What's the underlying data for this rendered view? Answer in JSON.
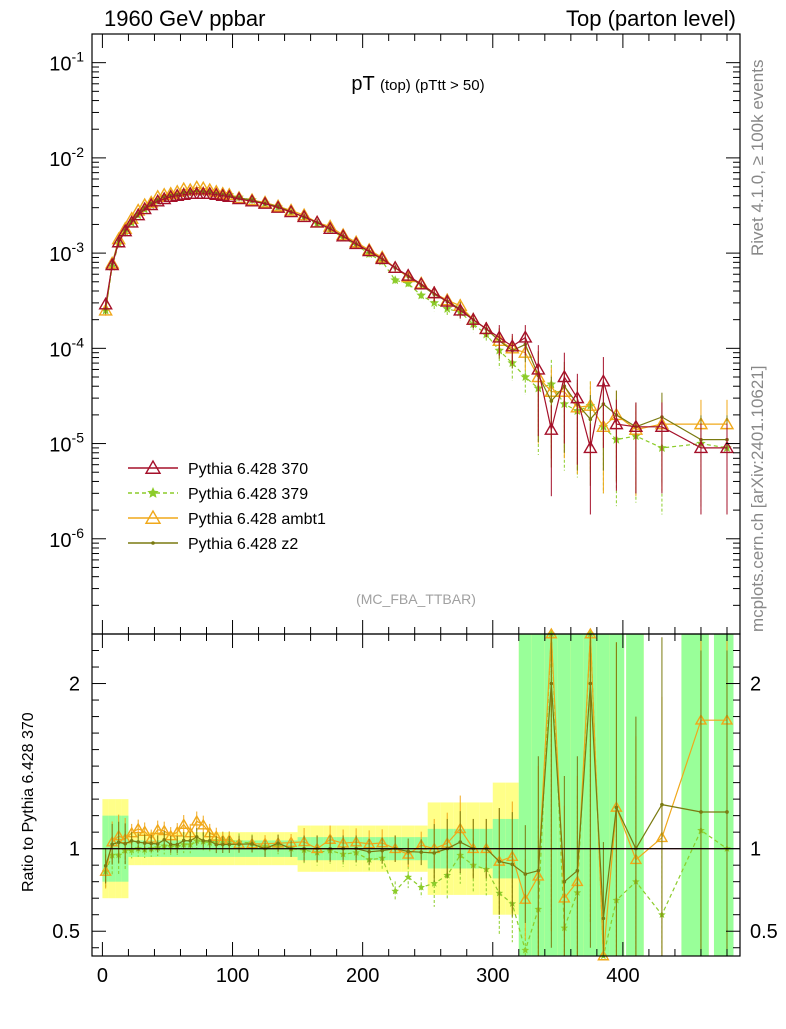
{
  "header": {
    "left": "1960 GeV ppbar",
    "right": "Top (parton level)"
  },
  "side": {
    "rivet": "Rivet 4.1.0, ≥ 100k events",
    "mcplots": "mcplots.cern.ch [arXiv:2401.10621]"
  },
  "colors": {
    "p370": "#a5102a",
    "p379": "#8ccc2a",
    "ambt1": "#f0a81a",
    "z2": "#7a7a10",
    "band_inner": "#99ff99",
    "band_outer": "#ffff88"
  },
  "chart_data": {
    "type": "line",
    "title": "pT (top) (pTtt > 50)",
    "analysis_tag": "(MC_FBA_TTBAR)",
    "xlabel": "",
    "x_ticks": [
      0,
      100,
      200,
      300,
      400
    ],
    "main": {
      "yscale": "log",
      "ylim": [
        1e-07,
        0.2
      ],
      "y_ticks": [
        {
          "value": 1e-06,
          "exp": "-6"
        },
        {
          "value": 1e-05,
          "exp": "-5"
        },
        {
          "value": 0.0001,
          "exp": "-4"
        },
        {
          "value": 0.001,
          "exp": "-3"
        },
        {
          "value": 0.01,
          "exp": "-2"
        },
        {
          "value": 0.1,
          "exp": "-1"
        }
      ]
    },
    "ratio": {
      "ylabel": "Ratio to Pythia 6.428 370",
      "ylim": [
        0.35,
        2.3
      ],
      "y_ticks": [
        "0.5",
        "1",
        "2"
      ],
      "y_tick_values": [
        0.5,
        1,
        2
      ]
    },
    "xlim": [
      -8,
      490
    ],
    "x": [
      2.5,
      7.5,
      12.5,
      17.5,
      22.5,
      27.5,
      32.5,
      37.5,
      42.5,
      47.5,
      52.5,
      57.5,
      62.5,
      67.5,
      72.5,
      77.5,
      82.5,
      87.5,
      92.5,
      97.5,
      105,
      115,
      125,
      135,
      145,
      155,
      165,
      175,
      185,
      195,
      205,
      215,
      225,
      235,
      245,
      255,
      265,
      275,
      285,
      295,
      305,
      315,
      325,
      335,
      345,
      355,
      365,
      375,
      385,
      395,
      410,
      430,
      460,
      480
    ],
    "series": [
      {
        "name": "Pythia 6.428 370",
        "marker": "triangle-open",
        "color_key": "p370",
        "values": [
          0.00029,
          0.00075,
          0.0013,
          0.0017,
          0.0021,
          0.0025,
          0.0029,
          0.0032,
          0.0035,
          0.0037,
          0.0039,
          0.004,
          0.0041,
          0.0042,
          0.0042,
          0.0042,
          0.0042,
          0.0041,
          0.004,
          0.0039,
          0.0037,
          0.0035,
          0.0033,
          0.003,
          0.0027,
          0.0024,
          0.0021,
          0.0018,
          0.0015,
          0.00125,
          0.00105,
          0.00087,
          0.0007,
          0.00058,
          0.00047,
          0.00038,
          0.00031,
          0.00025,
          0.0002,
          0.00016,
          0.00013,
          0.000105,
          0.00013,
          6e-05,
          1.4e-05,
          5e-05,
          3e-05,
          9e-06,
          4.5e-05,
          1.6e-05,
          1.5e-05,
          1.5e-05,
          9e-06,
          9e-06
        ]
      },
      {
        "name": "Pythia 6.428 379",
        "marker": "star",
        "dashed": true,
        "color_key": "p379",
        "values": [
          0.00025,
          0.00072,
          0.00125,
          0.00168,
          0.00208,
          0.0025,
          0.00288,
          0.0032,
          0.00352,
          0.00376,
          0.00395,
          0.00405,
          0.0042,
          0.0043,
          0.0044,
          0.00438,
          0.00435,
          0.0043,
          0.0042,
          0.0041,
          0.00385,
          0.00362,
          0.00334,
          0.00305,
          0.0027,
          0.00238,
          0.00205,
          0.00178,
          0.00145,
          0.00122,
          0.00098,
          0.00082,
          0.00052,
          0.00048,
          0.00036,
          0.0003,
          0.00026,
          0.00024,
          0.00018,
          0.00014,
          9.5e-05,
          7e-05,
          5e-05,
          3.8e-05,
          4.2e-05,
          2.6e-05,
          2.2e-05,
          2.5e-05,
          1.5e-05,
          1.1e-05,
          1.2e-05,
          9e-06,
          1e-05,
          9e-06
        ]
      },
      {
        "name": "Pythia 6.428 ambt1",
        "marker": "triangle-open",
        "color_key": "ambt1",
        "values": [
          0.00025,
          0.00078,
          0.0014,
          0.0018,
          0.0023,
          0.0028,
          0.0032,
          0.0034,
          0.0039,
          0.0041,
          0.0042,
          0.0044,
          0.0047,
          0.0046,
          0.0049,
          0.0048,
          0.0046,
          0.0044,
          0.0042,
          0.0041,
          0.0038,
          0.0036,
          0.0034,
          0.0031,
          0.0028,
          0.0025,
          0.0021,
          0.0019,
          0.00155,
          0.0013,
          0.00108,
          0.0009,
          0.0007,
          0.00056,
          0.00048,
          0.00038,
          0.00032,
          0.00028,
          0.0002,
          0.00016,
          0.00012,
          0.0001,
          9e-05,
          5e-05,
          3.5e-05,
          3.5e-05,
          2.4e-05,
          2.5e-05,
          1.5e-05,
          2e-05,
          1.4e-05,
          1.6e-05,
          1.6e-05,
          1.6e-05
        ]
      },
      {
        "name": "Pythia 6.428 z2",
        "marker": "dot",
        "color_key": "z2",
        "values": [
          0.00026,
          0.00077,
          0.00135,
          0.00175,
          0.0022,
          0.0026,
          0.003,
          0.0033,
          0.0036,
          0.0039,
          0.004,
          0.0041,
          0.0043,
          0.0044,
          0.0045,
          0.0044,
          0.0044,
          0.0042,
          0.0041,
          0.004,
          0.0038,
          0.0036,
          0.0033,
          0.0031,
          0.0027,
          0.0024,
          0.0021,
          0.0018,
          0.0015,
          0.00125,
          0.00103,
          0.00086,
          0.0007,
          0.00057,
          0.00046,
          0.00037,
          0.00031,
          0.00026,
          0.0002,
          0.00016,
          0.00012,
          9.5e-05,
          0.00011,
          5.2e-05,
          2.8e-05,
          4e-05,
          2.6e-05,
          1.8e-05,
          2.6e-05,
          2e-05,
          1.5e-05,
          1.9e-05,
          1.1e-05,
          1.1e-05
        ]
      }
    ]
  }
}
